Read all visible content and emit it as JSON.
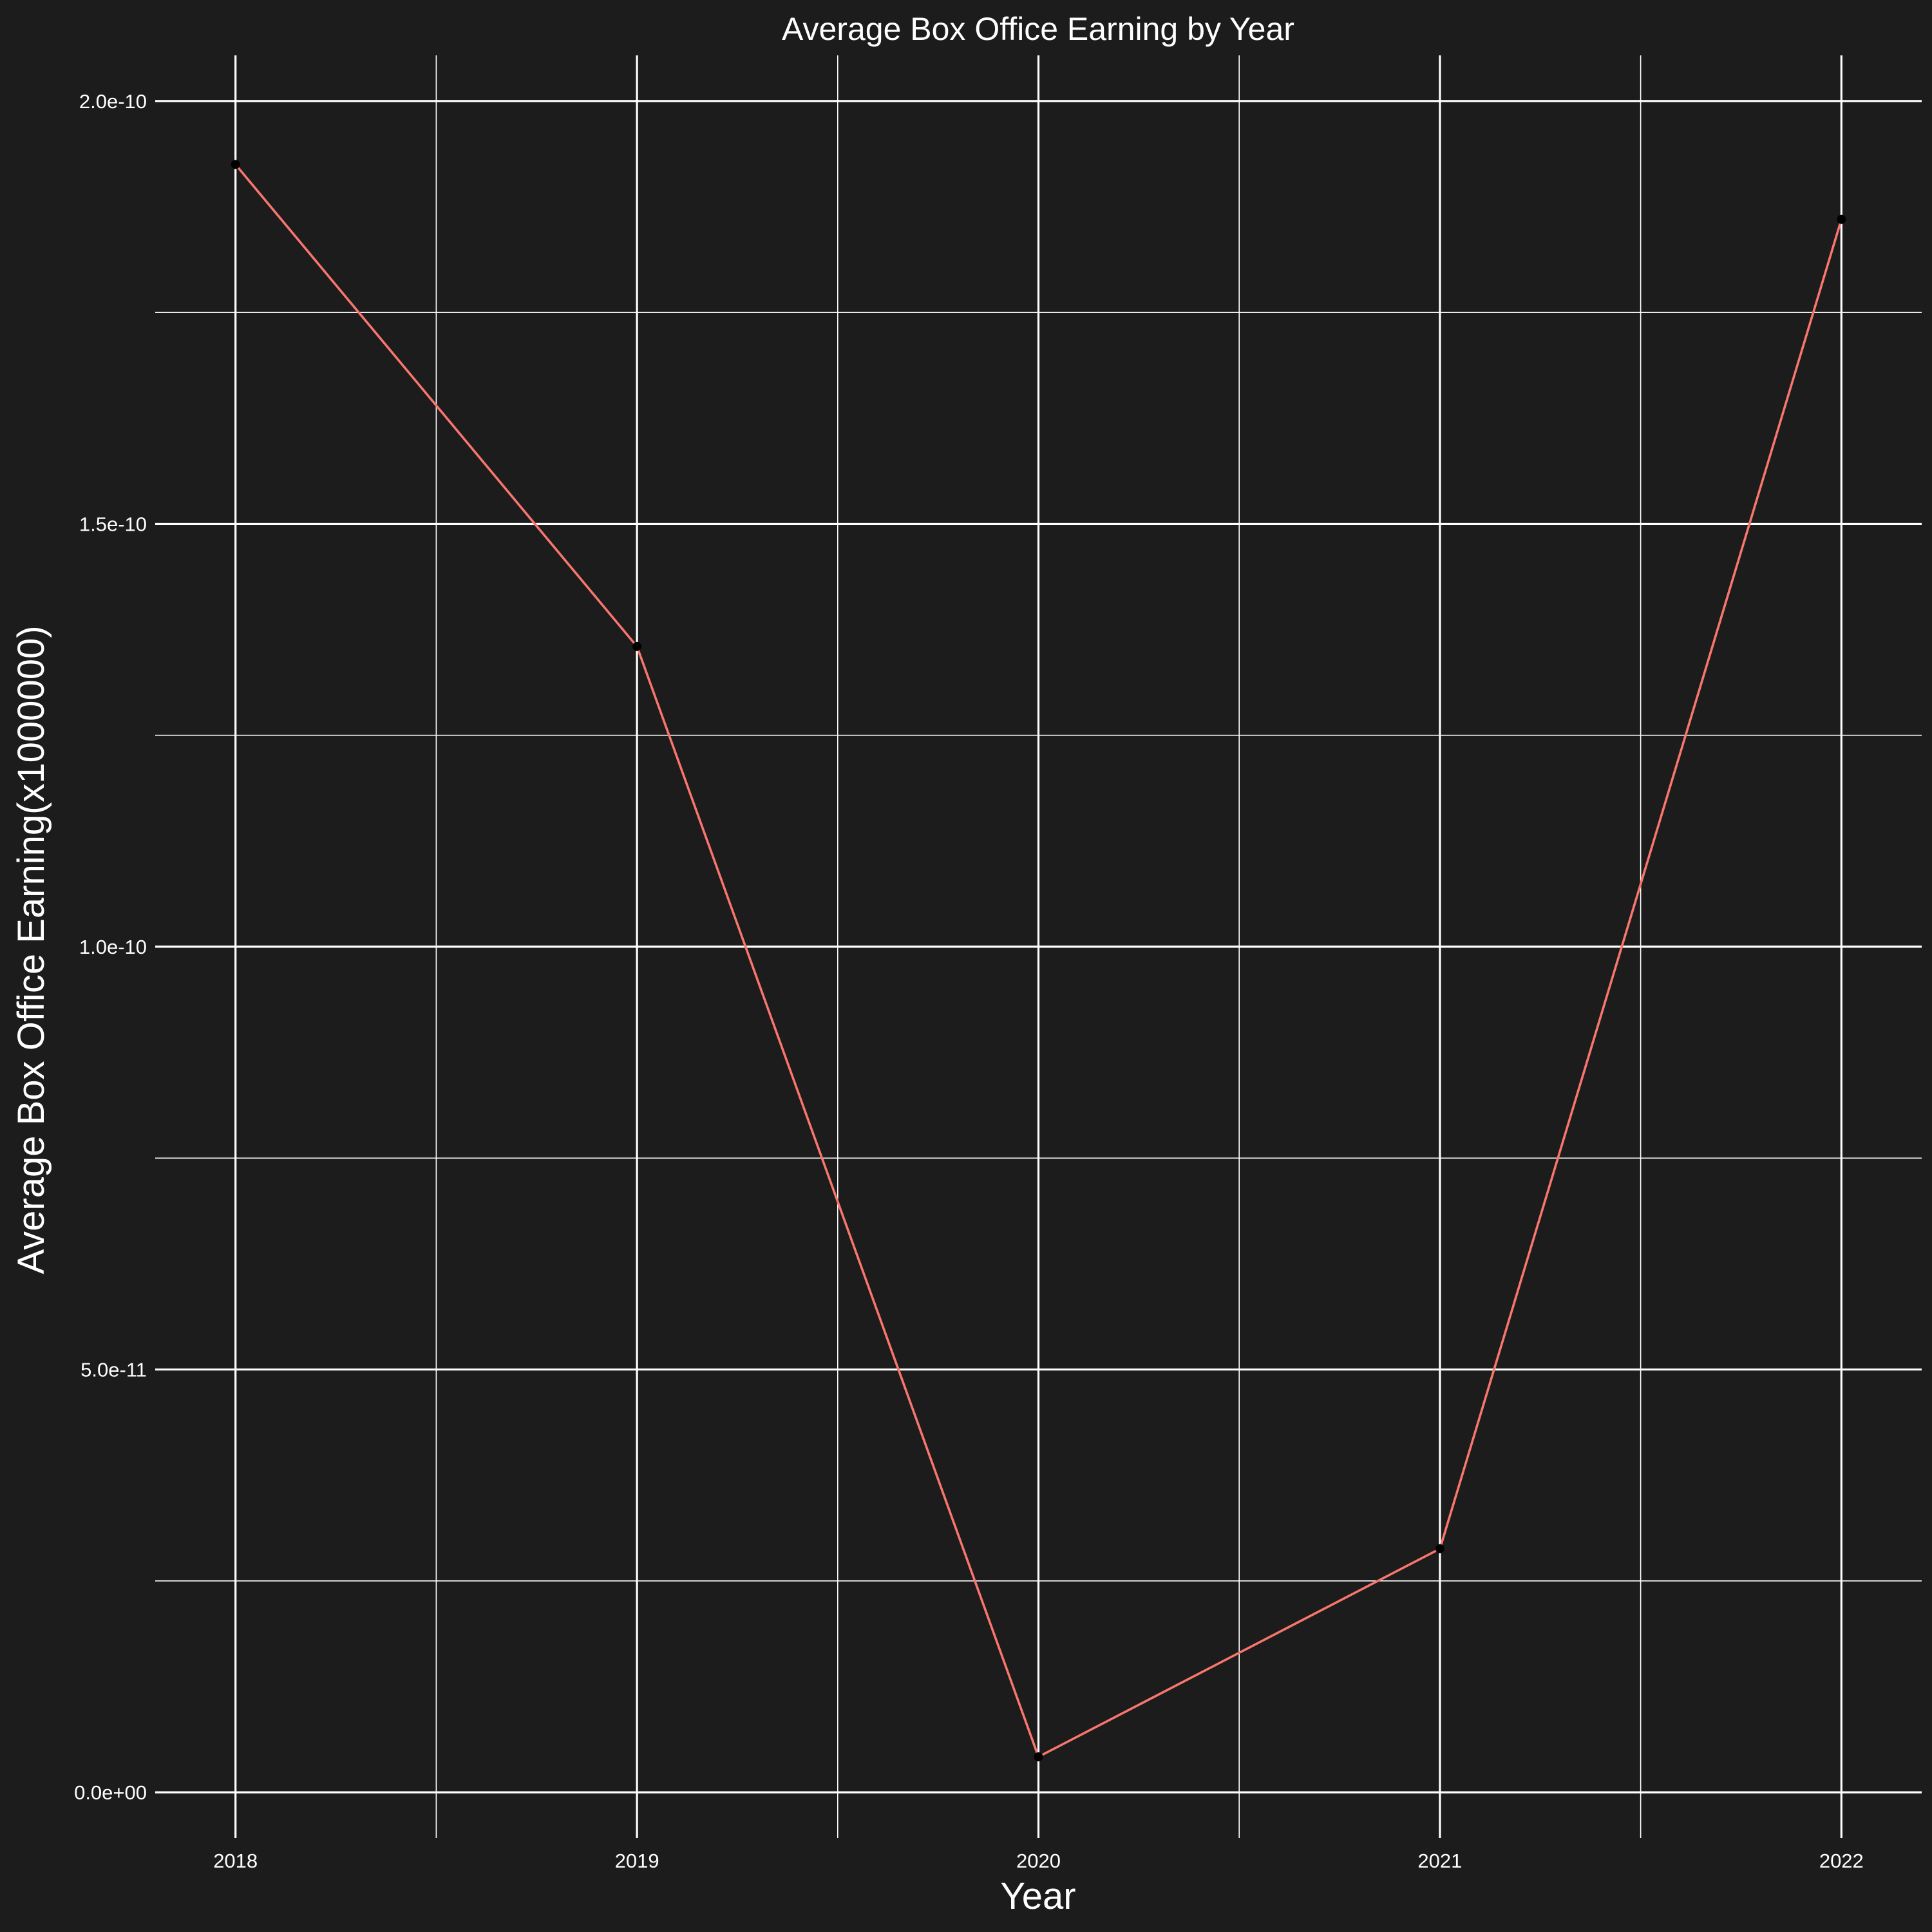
{
  "chart_data": {
    "type": "line",
    "title": "Average Box Office Earning by Year",
    "xlabel": "Year",
    "ylabel": "Average Box Office Earning(x1000000)",
    "x": [
      2018,
      2019,
      2020,
      2021,
      2022
    ],
    "x_tick_labels": [
      "2018",
      "2019",
      "2020",
      "2021",
      "2022"
    ],
    "y_ticks": [
      0,
      5e-11,
      1e-10,
      1.5e-10,
      2e-10
    ],
    "y_tick_labels": [
      "0.0e+00",
      "5.0e-11",
      "1.0e-10",
      "1.5e-10",
      "2.0e-10"
    ],
    "series": [
      {
        "values": [
          1.925e-10,
          1.355e-10,
          4.2e-12,
          2.88e-11,
          1.86e-10
        ],
        "color": "#f8766d",
        "point_color": "#000000"
      }
    ],
    "xlim": [
      2017.8,
      2022.2
    ],
    "ylim": [
      -5.4e-12,
      2.054e-10
    ],
    "grid": true,
    "legend": "none",
    "background_color": "#1c1c1c",
    "grid_color": "#ffffff",
    "text_color": "#ffffff"
  }
}
